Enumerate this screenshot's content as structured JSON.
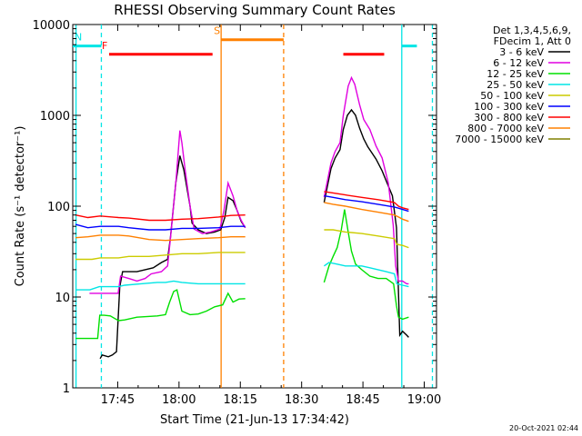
{
  "chart_data": {
    "type": "line",
    "title": "RHESSI Observing Summary Count Rates",
    "xlabel": "Start Time (21-Jun-13 17:34:42)",
    "ylabel": "Count Rate (s⁻¹ detector⁻¹)",
    "yscale": "log",
    "ylim": [
      1,
      10000
    ],
    "xlim_minutes": [
      -0.7,
      88.3
    ],
    "x_ticks": [
      {
        "min": 10.3,
        "label": "17:45"
      },
      {
        "min": 25.3,
        "label": "18:00"
      },
      {
        "min": 40.3,
        "label": "18:15"
      },
      {
        "min": 55.3,
        "label": "18:30"
      },
      {
        "min": 70.3,
        "label": "18:45"
      },
      {
        "min": 85.3,
        "label": "19:00"
      }
    ],
    "y_ticks": [
      {
        "v": 1,
        "label": "1"
      },
      {
        "v": 10,
        "label": "10"
      },
      {
        "v": 100,
        "label": "100"
      },
      {
        "v": 1000,
        "label": "1000"
      },
      {
        "v": 10000,
        "label": "10000"
      }
    ],
    "legend_header": [
      "Det 1,3,4,5,6,9,",
      "FDecim 1, Att 0"
    ],
    "series": [
      {
        "name": "3 - 6 keV",
        "color": "#000000",
        "segments": [
          [
            [
              6,
              2.1
            ],
            [
              6.5,
              2.3
            ],
            [
              8,
              2.2
            ],
            [
              9,
              2.3
            ],
            [
              10,
              2.5
            ],
            [
              10.8,
              13
            ],
            [
              11.5,
              19
            ],
            [
              13,
              19
            ],
            [
              15,
              19
            ],
            [
              17,
              20
            ],
            [
              19,
              21
            ],
            [
              21,
              24
            ],
            [
              22.5,
              26
            ],
            [
              23.2,
              45
            ],
            [
              24.5,
              180
            ],
            [
              25.5,
              360
            ],
            [
              26.5,
              250
            ],
            [
              28,
              100
            ],
            [
              28.5,
              65
            ],
            [
              30,
              55
            ],
            [
              32,
              50
            ],
            [
              34,
              52
            ],
            [
              35.5,
              55
            ],
            [
              36.5,
              75
            ],
            [
              37.3,
              125
            ],
            [
              38.5,
              115
            ],
            [
              39.5,
              90
            ],
            [
              40.5,
              68
            ],
            [
              41.5,
              58
            ]
          ],
          [
            [
              60.8,
              110
            ],
            [
              62.5,
              260
            ],
            [
              63.5,
              340
            ],
            [
              64.7,
              420
            ],
            [
              65.5,
              700
            ],
            [
              66.5,
              1000
            ],
            [
              67.5,
              1150
            ],
            [
              68.5,
              1000
            ],
            [
              69.5,
              720
            ],
            [
              70.5,
              550
            ],
            [
              71.5,
              450
            ],
            [
              73.5,
              330
            ],
            [
              75,
              245
            ],
            [
              76,
              190
            ],
            [
              77.5,
              130
            ],
            [
              78.5,
              58
            ],
            [
              78.9,
              15
            ],
            [
              79.3,
              3.8
            ],
            [
              80,
              4.2
            ],
            [
              81,
              3.8
            ],
            [
              81.5,
              3.6
            ]
          ]
        ]
      },
      {
        "name": "6 - 12 keV",
        "color": "#e000e0",
        "segments": [
          [
            [
              3.4,
              11
            ],
            [
              6.3,
              11
            ],
            [
              10.4,
              11
            ],
            [
              11,
              17
            ],
            [
              13,
              16
            ],
            [
              15,
              15
            ],
            [
              17,
              16
            ],
            [
              18.5,
              18
            ],
            [
              21,
              19
            ],
            [
              22.5,
              22
            ],
            [
              23.2,
              44
            ],
            [
              24.6,
              200
            ],
            [
              25.5,
              680
            ],
            [
              26,
              500
            ],
            [
              26.8,
              250
            ],
            [
              28,
              100
            ],
            [
              29,
              56
            ],
            [
              31,
              50
            ],
            [
              33,
              52
            ],
            [
              35.3,
              56
            ],
            [
              36.3,
              90
            ],
            [
              37.3,
              180
            ],
            [
              38.5,
              130
            ],
            [
              39.5,
              90
            ],
            [
              40.5,
              70
            ],
            [
              41.5,
              58
            ]
          ],
          [
            [
              60.8,
              125
            ],
            [
              62.5,
              300
            ],
            [
              63.5,
              400
            ],
            [
              64.7,
              500
            ],
            [
              65.5,
              1000
            ],
            [
              66.7,
              2100
            ],
            [
              67.5,
              2600
            ],
            [
              68.3,
              2200
            ],
            [
              69.5,
              1300
            ],
            [
              70.5,
              900
            ],
            [
              72,
              700
            ],
            [
              73.5,
              460
            ],
            [
              75,
              340
            ],
            [
              76.5,
              180
            ],
            [
              77.7,
              62
            ],
            [
              78.3,
              22
            ],
            [
              79,
              15
            ],
            [
              80,
              15
            ],
            [
              81,
              14
            ],
            [
              81.5,
              14
            ]
          ]
        ]
      },
      {
        "name": "12 - 25 keV",
        "color": "#00e000",
        "segments": [
          [
            [
              0,
              3.5
            ],
            [
              5.4,
              3.5
            ],
            [
              5.9,
              6.3
            ],
            [
              7,
              6.3
            ],
            [
              8.5,
              6.2
            ],
            [
              10.5,
              5.5
            ],
            [
              12,
              5.6
            ],
            [
              15,
              6
            ],
            [
              20,
              6.2
            ],
            [
              22,
              6.4
            ],
            [
              23,
              8.8
            ],
            [
              24,
              11.5
            ],
            [
              24.8,
              12
            ],
            [
              26,
              7
            ],
            [
              28,
              6.4
            ],
            [
              30,
              6.5
            ],
            [
              32,
              7
            ],
            [
              34,
              7.8
            ],
            [
              36,
              8.2
            ],
            [
              37.3,
              11
            ],
            [
              38.5,
              8.8
            ],
            [
              40,
              9.5
            ],
            [
              41.5,
              9.6
            ]
          ],
          [
            [
              60.8,
              14.5
            ],
            [
              62,
              22
            ],
            [
              63,
              28
            ],
            [
              64,
              35
            ],
            [
              65,
              55
            ],
            [
              65.8,
              92
            ],
            [
              66.6,
              55
            ],
            [
              67.5,
              32
            ],
            [
              68.5,
              23
            ],
            [
              70,
              20
            ],
            [
              72,
              17
            ],
            [
              74,
              16
            ],
            [
              76,
              16
            ],
            [
              77.8,
              14
            ],
            [
              78.5,
              8
            ],
            [
              79,
              6
            ],
            [
              80,
              5.7
            ],
            [
              81.5,
              6
            ]
          ]
        ]
      },
      {
        "name": "25 - 50 keV",
        "color": "#00e5e5",
        "segments": [
          [
            [
              0,
              12
            ],
            [
              3.5,
              12
            ],
            [
              5.8,
              13
            ],
            [
              7,
              13
            ],
            [
              10.5,
              13
            ],
            [
              12,
              13.5
            ],
            [
              16,
              14
            ],
            [
              20,
              14.5
            ],
            [
              22,
              14.5
            ],
            [
              24,
              15
            ],
            [
              26,
              14.5
            ],
            [
              30,
              14
            ],
            [
              34,
              14
            ],
            [
              38,
              14
            ],
            [
              41.5,
              14
            ]
          ],
          [
            [
              60.8,
              22
            ],
            [
              62,
              24
            ],
            [
              64,
              23
            ],
            [
              66,
              22
            ],
            [
              68,
              22
            ],
            [
              70,
              22
            ],
            [
              72,
              21
            ],
            [
              74,
              20
            ],
            [
              76,
              19
            ],
            [
              78,
              18
            ],
            [
              78.6,
              14
            ],
            [
              80,
              13.5
            ],
            [
              81.5,
              13
            ]
          ]
        ]
      },
      {
        "name": "50 - 100 keV",
        "color": "#cccc00",
        "segments": [
          [
            [
              0,
              26
            ],
            [
              4,
              26
            ],
            [
              6,
              27
            ],
            [
              10.5,
              27
            ],
            [
              13,
              28
            ],
            [
              18,
              28
            ],
            [
              22,
              29
            ],
            [
              26,
              30
            ],
            [
              30,
              30
            ],
            [
              35,
              31
            ],
            [
              38,
              31
            ],
            [
              41.5,
              31
            ]
          ],
          [
            [
              60.8,
              55
            ],
            [
              63,
              55
            ],
            [
              66,
              52
            ],
            [
              70,
              50
            ],
            [
              74,
              47
            ],
            [
              78,
              44
            ],
            [
              78.6,
              38
            ],
            [
              80,
              37
            ],
            [
              81.5,
              35
            ]
          ]
        ]
      },
      {
        "name": "100 - 300 keV",
        "color": "#0000ff",
        "segments": [
          [
            [
              0,
              63
            ],
            [
              3,
              58
            ],
            [
              6,
              60
            ],
            [
              10.5,
              60
            ],
            [
              13,
              58
            ],
            [
              18,
              55
            ],
            [
              22,
              55
            ],
            [
              26,
              57
            ],
            [
              30,
              57
            ],
            [
              35,
              58
            ],
            [
              38,
              60
            ],
            [
              41.5,
              60
            ]
          ],
          [
            [
              60.8,
              130
            ],
            [
              63,
              125
            ],
            [
              66,
              118
            ],
            [
              70,
              112
            ],
            [
              74,
              105
            ],
            [
              78,
              98
            ],
            [
              79,
              95
            ],
            [
              80,
              92
            ],
            [
              81.5,
              88
            ]
          ]
        ]
      },
      {
        "name": "300 - 800 keV",
        "color": "#ff0000",
        "segments": [
          [
            [
              0,
              80
            ],
            [
              3,
              75
            ],
            [
              6,
              78
            ],
            [
              10.5,
              75
            ],
            [
              13,
              74
            ],
            [
              18,
              70
            ],
            [
              22,
              70
            ],
            [
              26,
              72
            ],
            [
              30,
              73
            ],
            [
              35,
              76
            ],
            [
              38,
              79
            ],
            [
              41.5,
              80
            ]
          ],
          [
            [
              60.8,
              145
            ],
            [
              63,
              140
            ],
            [
              66,
              133
            ],
            [
              70,
              125
            ],
            [
              74,
              118
            ],
            [
              78,
              110
            ],
            [
              79,
              100
            ],
            [
              80,
              96
            ],
            [
              81.5,
              92
            ]
          ]
        ]
      },
      {
        "name": "800 - 7000 keV",
        "color": "#ff8000",
        "segments": [
          [
            [
              0,
              45
            ],
            [
              3,
              46
            ],
            [
              6,
              48
            ],
            [
              10.5,
              48
            ],
            [
              13,
              47
            ],
            [
              18,
              43
            ],
            [
              22,
              42
            ],
            [
              26,
              43
            ],
            [
              30,
              44
            ],
            [
              35,
              45
            ],
            [
              38,
              46
            ],
            [
              41.5,
              46
            ]
          ],
          [
            [
              60.8,
              110
            ],
            [
              63,
              105
            ],
            [
              66,
              100
            ],
            [
              70,
              92
            ],
            [
              74,
              86
            ],
            [
              78,
              80
            ],
            [
              79,
              76
            ],
            [
              80,
              72
            ],
            [
              81.5,
              68
            ]
          ]
        ]
      },
      {
        "name": "7000 - 15000 keV",
        "color": "#808000",
        "segments": []
      }
    ],
    "state_bars": [
      {
        "label": "N",
        "color": "#00e5e5",
        "y": 5800,
        "ranges": [
          [
            -0.7,
            6.3
          ],
          [
            79.8,
            83.5
          ]
        ]
      },
      {
        "label": "F",
        "color": "#ff0000",
        "y": 4700,
        "ranges": [
          [
            8.2,
            33.5
          ],
          [
            65.5,
            75.5
          ]
        ]
      },
      {
        "label": "S",
        "color": "#ff8000",
        "y": 6800,
        "ranges": [
          [
            35.6,
            50.9
          ]
        ]
      }
    ],
    "vertical_markers": [
      {
        "color": "#00e5e5",
        "style": "solid",
        "x": 0.1
      },
      {
        "color": "#00e5e5",
        "style": "dashed",
        "x": 6.3
      },
      {
        "color": "#ff8000",
        "style": "solid",
        "x": 35.6
      },
      {
        "color": "#ff8000",
        "style": "dashed",
        "x": 50.9
      },
      {
        "color": "#00e5e5",
        "style": "solid",
        "x": 79.8
      },
      {
        "color": "#00e5e5",
        "style": "dashed",
        "x": 87.3
      }
    ],
    "timestamp": "20-Oct-2021 02:44"
  }
}
